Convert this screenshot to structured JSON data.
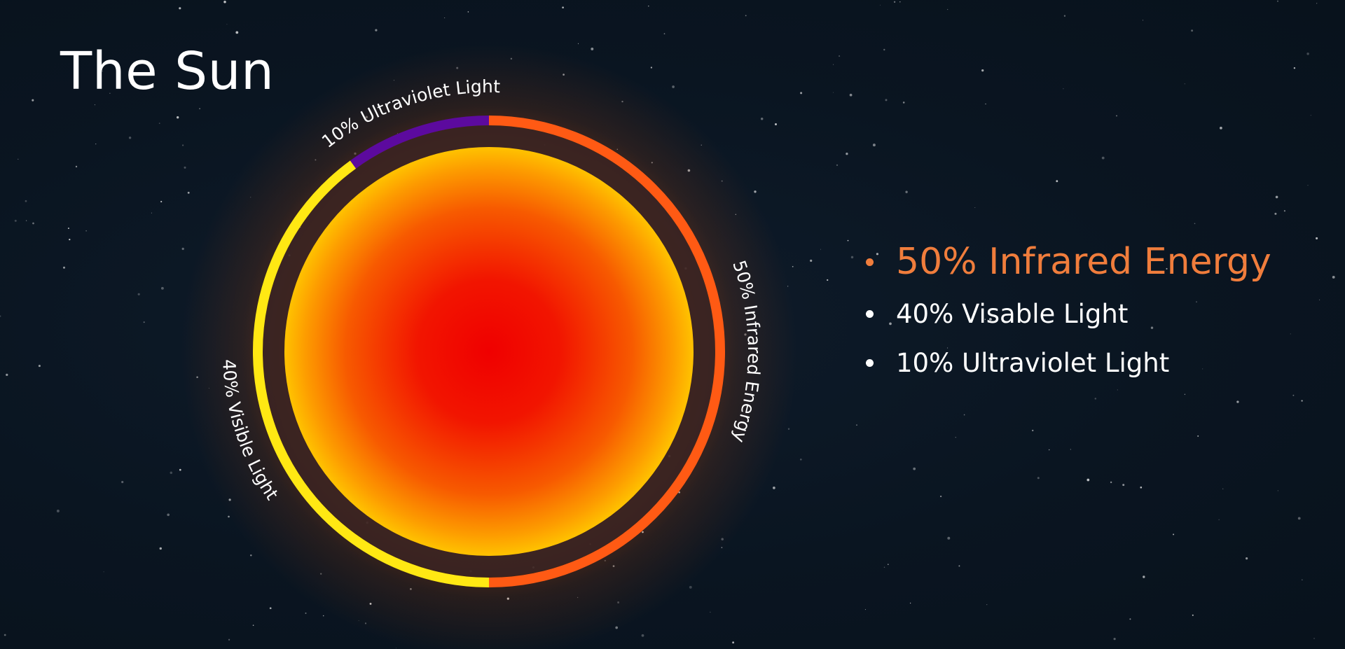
{
  "title": "The Sun",
  "segments": [
    {
      "label": "50% Infrared Energy",
      "percent": 50,
      "color": "#ff5a14"
    },
    {
      "label": "40% Visible Light",
      "percent": 40,
      "color": "#ffe813"
    },
    {
      "label": "10% Ultraviolet Light",
      "percent": 10,
      "color": "#5c0a9e"
    }
  ],
  "legend": {
    "items": [
      {
        "label": "50% Infrared Energy"
      },
      {
        "label": "40% Visable Light"
      },
      {
        "label": "10% Ultraviolet Light"
      }
    ]
  },
  "colors": {
    "background": "#0b1623",
    "legend_highlight": "#f07d3c",
    "sun_core": "#f00000",
    "sun_edge": "#ffc200"
  }
}
